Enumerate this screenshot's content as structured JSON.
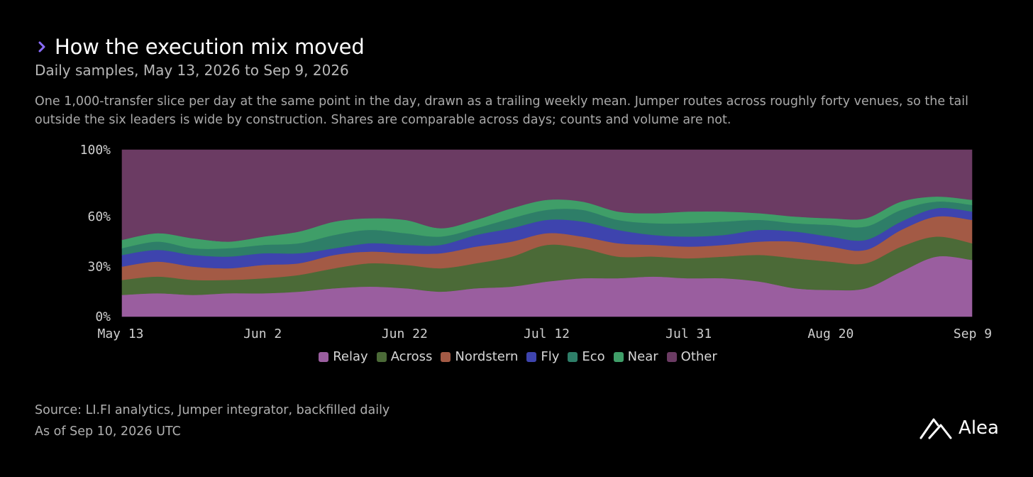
{
  "header": {
    "title": "How the execution mix moved",
    "subtitle": "Daily samples, May 13, 2026 to Sep 9, 2026"
  },
  "description": "One 1,000-transfer slice per day at the same point in the day, drawn as a trailing weekly mean. Jumper routes across roughly forty venues, so the tail outside the six leaders is wide by construction. Shares are comparable across days; counts and volume are not.",
  "footer": {
    "source": "Source: LI.FI analytics, Jumper integrator, backfilled daily",
    "asof": "As of Sep 10, 2026 UTC"
  },
  "brand": {
    "name": "Alea"
  },
  "colors": {
    "Relay": "#9a5e9f",
    "Across": "#4b6a37",
    "Nordstern": "#a35a45",
    "Fly": "#3e44ae",
    "Eco": "#2e7e68",
    "Near": "#3f9e68",
    "Other": "#6b3b63",
    "accent_chevron": "#8a6cff"
  },
  "chart_data": {
    "type": "area",
    "stacked": true,
    "x": [
      "May 13",
      "May 18",
      "May 23",
      "May 28",
      "Jun 2",
      "Jun 7",
      "Jun 12",
      "Jun 17",
      "Jun 22",
      "Jun 27",
      "Jul 2",
      "Jul 7",
      "Jul 12",
      "Jul 17",
      "Jul 22",
      "Jul 27",
      "Aug 1",
      "Aug 6",
      "Aug 11",
      "Aug 16",
      "Aug 21",
      "Aug 26",
      "Aug 31",
      "Sep 5",
      "Sep 9"
    ],
    "x_ticks": [
      "May 13",
      "Jun 2",
      "Jun 22",
      "Jul 12",
      "Jul 31",
      "Aug 20",
      "Sep 9"
    ],
    "y_ticks": [
      "0%",
      "30%",
      "60%",
      "100%"
    ],
    "y_tick_values": [
      0,
      30,
      60,
      100
    ],
    "ylim": [
      0,
      100
    ],
    "series": [
      {
        "name": "Relay",
        "values": [
          13,
          14,
          13,
          14,
          14,
          15,
          17,
          18,
          17,
          15,
          17,
          18,
          21,
          23,
          23,
          24,
          23,
          23,
          21,
          17,
          16,
          17,
          27,
          36,
          34
        ]
      },
      {
        "name": "Across",
        "values": [
          9,
          10,
          9,
          8,
          9,
          10,
          12,
          14,
          14,
          14,
          15,
          18,
          22,
          18,
          13,
          12,
          12,
          13,
          16,
          18,
          17,
          15,
          15,
          12,
          10
        ]
      },
      {
        "name": "Nordstern",
        "values": [
          8,
          9,
          8,
          7,
          8,
          7,
          8,
          7,
          7,
          9,
          10,
          9,
          7,
          7,
          8,
          7,
          7,
          7,
          8,
          10,
          9,
          8,
          10,
          12,
          14
        ]
      },
      {
        "name": "Fly",
        "values": [
          7,
          7,
          7,
          7,
          7,
          6,
          4,
          5,
          5,
          5,
          7,
          8,
          8,
          9,
          8,
          6,
          6,
          6,
          7,
          6,
          6,
          6,
          5,
          5,
          5
        ]
      },
      {
        "name": "Eco",
        "values": [
          4,
          5,
          4,
          5,
          5,
          6,
          8,
          8,
          7,
          5,
          4,
          6,
          6,
          7,
          6,
          7,
          8,
          8,
          6,
          5,
          7,
          8,
          7,
          4,
          4
        ]
      },
      {
        "name": "Near",
        "values": [
          5,
          5,
          6,
          4,
          5,
          7,
          8,
          7,
          8,
          5,
          5,
          6,
          6,
          5,
          5,
          6,
          7,
          6,
          4,
          4,
          4,
          5,
          5,
          3,
          3
        ]
      },
      {
        "name": "Other",
        "values": [
          54,
          50,
          53,
          55,
          52,
          49,
          43,
          41,
          42,
          47,
          42,
          35,
          30,
          31,
          37,
          38,
          37,
          37,
          38,
          40,
          41,
          41,
          31,
          28,
          30
        ]
      }
    ],
    "legend_position": "bottom",
    "grid": false
  }
}
